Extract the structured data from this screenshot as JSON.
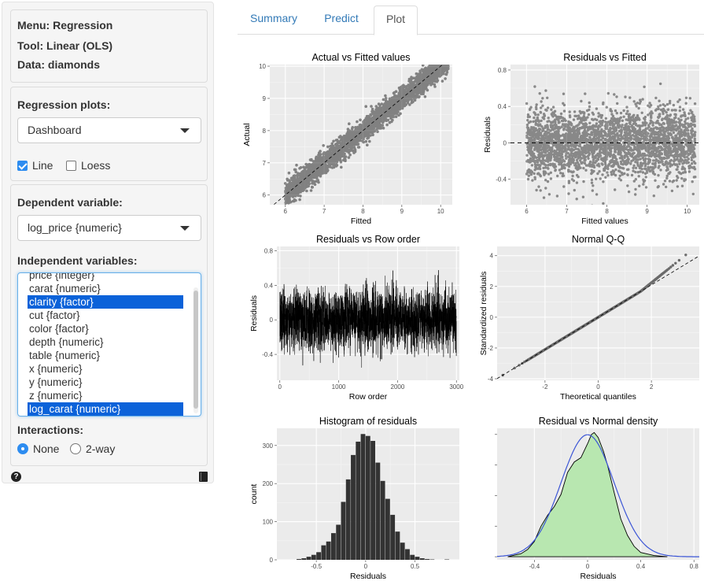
{
  "sidebar": {
    "menu": "Menu: Regression",
    "tool": "Tool: Linear (OLS)",
    "data": "Data: diamonds",
    "plots_label": "Regression plots:",
    "plots_value": "Dashboard",
    "line_label": "Line",
    "loess_label": "Loess",
    "line_checked": true,
    "loess_checked": false,
    "dep_label": "Dependent variable:",
    "dep_value": "log_price {numeric}",
    "indep_label": "Independent variables:",
    "indep_items": [
      {
        "label": "price {integer}",
        "selected": false
      },
      {
        "label": "carat {numeric}",
        "selected": false
      },
      {
        "label": "clarity {factor}",
        "selected": true
      },
      {
        "label": "cut {factor}",
        "selected": false
      },
      {
        "label": "color {factor}",
        "selected": false
      },
      {
        "label": "depth {numeric}",
        "selected": false
      },
      {
        "label": "table {numeric}",
        "selected": false
      },
      {
        "label": "x {numeric}",
        "selected": false
      },
      {
        "label": "y {numeric}",
        "selected": false
      },
      {
        "label": "z {numeric}",
        "selected": false
      },
      {
        "label": "log_carat {numeric}",
        "selected": true
      }
    ],
    "interactions_label": "Interactions:",
    "interactions_options": [
      "None",
      "2-way"
    ],
    "interactions_selected": "None",
    "help_icon": "question-circle-icon",
    "report_icon": "book-icon"
  },
  "tabs": [
    {
      "label": "Summary",
      "active": false
    },
    {
      "label": "Predict",
      "active": false
    },
    {
      "label": "Plot",
      "active": true
    }
  ],
  "colors": {
    "accent": "#2d8cf0",
    "selected_option": "#0b62d9",
    "tab_link": "#337ab7",
    "panel_bg": "#ebebeb",
    "density_fill": "#b8e7b0",
    "density_line": "#3b55d6"
  },
  "chart_data": [
    {
      "type": "scatter",
      "title": "Actual vs Fitted values",
      "xlabel": "Fitted",
      "ylabel": "Actual",
      "xlim": [
        5.6,
        10.3
      ],
      "ylim": [
        5.7,
        10.05
      ],
      "xticks": [
        6,
        7,
        8,
        9,
        10
      ],
      "yticks": [
        6,
        7,
        8,
        9,
        10
      ],
      "reference_line": "dashed diagonal y = x",
      "grid": true,
      "n_points": 3000
    },
    {
      "type": "scatter",
      "title": "Residuals vs Fitted",
      "xlabel": "Fitted values",
      "ylabel": "Residuals",
      "xlim": [
        5.6,
        10.3
      ],
      "ylim": [
        -0.68,
        0.86
      ],
      "xticks": [
        6,
        7,
        8,
        9,
        10
      ],
      "yticks": [
        -0.4,
        0.0,
        0.4,
        0.8
      ],
      "reference_line": "dashed horizontal y = 0",
      "grid": true,
      "n_points": 3000
    },
    {
      "type": "line",
      "title": "Residuals vs Row order",
      "xlabel": "Row order",
      "ylabel": "Residuals",
      "xlim": [
        -50,
        3050
      ],
      "ylim": [
        -0.7,
        0.85
      ],
      "xticks": [
        0,
        1000,
        2000,
        3000
      ],
      "yticks": [
        -0.4,
        0.0,
        0.4,
        0.8
      ],
      "grid": true,
      "n_points": 3000
    },
    {
      "type": "scatter",
      "title": "Normal Q-Q",
      "xlabel": "Theoretical quantiles",
      "ylabel": "Standardized residuals",
      "xlim": [
        -3.8,
        3.8
      ],
      "ylim": [
        -4.1,
        4.6
      ],
      "xticks": [
        -2,
        0,
        2
      ],
      "yticks": [
        -4,
        -2,
        0,
        2,
        4
      ],
      "reference_line": "dashed diagonal",
      "grid": true,
      "n_points": 3000
    },
    {
      "type": "bar",
      "title": "Histogram of residuals",
      "xlabel": "Residuals",
      "ylabel": "count",
      "xlim": [
        -0.9,
        0.95
      ],
      "ylim": [
        0,
        345
      ],
      "xticks": [
        -0.5,
        0.0,
        0.5
      ],
      "yticks": [
        0,
        100,
        200,
        300
      ],
      "bin_width": 0.05,
      "bins_start": [
        -0.7,
        -0.65,
        -0.6,
        -0.55,
        -0.5,
        -0.45,
        -0.4,
        -0.35,
        -0.3,
        -0.25,
        -0.2,
        -0.15,
        -0.1,
        -0.05,
        0.0,
        0.05,
        0.1,
        0.15,
        0.2,
        0.25,
        0.3,
        0.35,
        0.4,
        0.45,
        0.5,
        0.55,
        0.6,
        0.65,
        0.7,
        0.75,
        0.8
      ],
      "counts": [
        2,
        4,
        8,
        13,
        20,
        38,
        48,
        70,
        92,
        152,
        211,
        275,
        310,
        330,
        325,
        312,
        255,
        207,
        160,
        118,
        74,
        45,
        28,
        13,
        8,
        4,
        2,
        1,
        0,
        0,
        1
      ],
      "grid": true
    },
    {
      "type": "area",
      "title": "Residual vs Normal density",
      "xlabel": "Residuals",
      "ylabel": "",
      "xlim": [
        -0.68,
        0.84
      ],
      "ylim": [
        -0.05,
        2.1
      ],
      "xticks": [
        -0.4,
        0.0,
        0.4,
        0.8
      ],
      "series": [
        {
          "name": "",
          "style": "filled density (black outline, green fill)",
          "x": [
            -0.6,
            -0.5,
            -0.45,
            -0.4,
            -0.35,
            -0.3,
            -0.25,
            -0.2,
            -0.15,
            -0.1,
            -0.05,
            0.0,
            0.03,
            0.05,
            0.08,
            0.12,
            0.15,
            0.2,
            0.25,
            0.3,
            0.35,
            0.4,
            0.5,
            0.6
          ],
          "y": [
            0.0,
            0.05,
            0.12,
            0.25,
            0.5,
            0.68,
            0.82,
            1.02,
            1.38,
            1.55,
            1.62,
            1.85,
            2.0,
            2.03,
            1.95,
            1.72,
            1.5,
            1.05,
            0.62,
            0.35,
            0.17,
            0.07,
            0.02,
            0.0
          ]
        },
        {
          "name": "",
          "style": "normal density (blue line)",
          "mean": 0.0,
          "sd": 0.2
        }
      ],
      "grid": true
    }
  ]
}
